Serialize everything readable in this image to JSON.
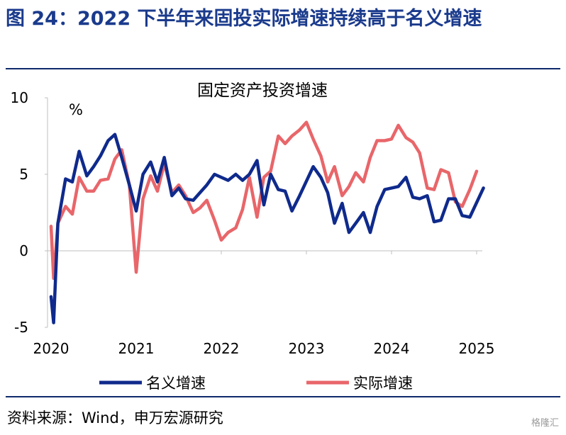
{
  "figure": {
    "title": "图 24：2022 下半年来固投实际增速持续高于名义增速",
    "source": "资料来源：Wind，申万宏源研究",
    "watermark": "格隆汇"
  },
  "chart_data": {
    "type": "line",
    "title": "固定资产投资增速",
    "ylabel": "%",
    "ylim": [
      -5,
      10
    ],
    "yticks": [
      -5,
      0,
      5,
      10
    ],
    "xlim": [
      2020.0,
      2025.15
    ],
    "xticks": [
      2020,
      2021,
      2022,
      2023,
      2024,
      2025
    ],
    "xtick_labels": [
      "2020",
      "2021",
      "2022",
      "2023",
      "2024",
      "2025"
    ],
    "legend_position": "bottom",
    "series": [
      {
        "name": "名义增速",
        "color": "#0f2a8c",
        "points": [
          [
            2020.0,
            -3.0
          ],
          [
            2020.03,
            -4.7
          ],
          [
            2020.08,
            1.8
          ],
          [
            2020.17,
            4.7
          ],
          [
            2020.25,
            4.5
          ],
          [
            2020.33,
            6.5
          ],
          [
            2020.42,
            4.9
          ],
          [
            2020.5,
            5.5
          ],
          [
            2020.58,
            6.2
          ],
          [
            2020.67,
            7.2
          ],
          [
            2020.75,
            7.6
          ],
          [
            2020.83,
            6.1
          ],
          [
            2020.92,
            4.3
          ],
          [
            2021.0,
            2.6
          ],
          [
            2021.08,
            5.0
          ],
          [
            2021.17,
            5.8
          ],
          [
            2021.25,
            4.5
          ],
          [
            2021.33,
            6.1
          ],
          [
            2021.42,
            3.6
          ],
          [
            2021.5,
            4.1
          ],
          [
            2021.58,
            3.4
          ],
          [
            2021.67,
            3.3
          ],
          [
            2021.75,
            3.8
          ],
          [
            2021.83,
            4.3
          ],
          [
            2021.92,
            5.0
          ],
          [
            2022.08,
            4.6
          ],
          [
            2022.17,
            5.0
          ],
          [
            2022.25,
            4.6
          ],
          [
            2022.33,
            5.0
          ],
          [
            2022.42,
            5.9
          ],
          [
            2022.5,
            3.0
          ],
          [
            2022.58,
            5.0
          ],
          [
            2022.67,
            4.0
          ],
          [
            2022.75,
            3.9
          ],
          [
            2022.83,
            2.6
          ],
          [
            2022.92,
            3.6
          ],
          [
            2023.08,
            5.5
          ],
          [
            2023.17,
            4.8
          ],
          [
            2023.25,
            3.8
          ],
          [
            2023.33,
            1.8
          ],
          [
            2023.42,
            3.1
          ],
          [
            2023.5,
            1.2
          ],
          [
            2023.58,
            1.8
          ],
          [
            2023.67,
            2.5
          ],
          [
            2023.75,
            1.2
          ],
          [
            2023.83,
            2.9
          ],
          [
            2023.92,
            4.0
          ],
          [
            2024.0,
            4.1
          ],
          [
            2024.08,
            4.2
          ],
          [
            2024.17,
            4.8
          ],
          [
            2024.25,
            3.5
          ],
          [
            2024.33,
            3.4
          ],
          [
            2024.42,
            3.6
          ],
          [
            2024.5,
            1.9
          ],
          [
            2024.58,
            2.0
          ],
          [
            2024.67,
            3.4
          ],
          [
            2024.75,
            3.4
          ],
          [
            2024.83,
            2.3
          ],
          [
            2024.92,
            2.2
          ],
          [
            2025.08,
            4.1
          ]
        ]
      },
      {
        "name": "实际增速",
        "color": "#e8666a",
        "points": [
          [
            2020.0,
            1.6
          ],
          [
            2020.03,
            -1.8
          ],
          [
            2020.08,
            1.8
          ],
          [
            2020.17,
            2.9
          ],
          [
            2020.25,
            2.4
          ],
          [
            2020.33,
            4.8
          ],
          [
            2020.42,
            3.9
          ],
          [
            2020.5,
            3.9
          ],
          [
            2020.58,
            4.6
          ],
          [
            2020.67,
            4.7
          ],
          [
            2020.75,
            6.0
          ],
          [
            2020.83,
            6.6
          ],
          [
            2020.92,
            4.3
          ],
          [
            2021.0,
            -1.4
          ],
          [
            2021.08,
            3.4
          ],
          [
            2021.17,
            4.9
          ],
          [
            2021.25,
            3.9
          ],
          [
            2021.33,
            5.7
          ],
          [
            2021.42,
            3.8
          ],
          [
            2021.5,
            4.3
          ],
          [
            2021.58,
            3.6
          ],
          [
            2021.67,
            2.5
          ],
          [
            2021.75,
            2.8
          ],
          [
            2021.83,
            3.3
          ],
          [
            2021.92,
            2.0
          ],
          [
            2022.0,
            0.7
          ],
          [
            2022.08,
            1.2
          ],
          [
            2022.17,
            1.5
          ],
          [
            2022.25,
            2.7
          ],
          [
            2022.33,
            4.8
          ],
          [
            2022.42,
            2.2
          ],
          [
            2022.5,
            4.8
          ],
          [
            2022.58,
            5.2
          ],
          [
            2022.67,
            7.5
          ],
          [
            2022.75,
            7.0
          ],
          [
            2022.83,
            7.5
          ],
          [
            2022.92,
            7.9
          ],
          [
            2023.0,
            8.4
          ],
          [
            2023.08,
            7.3
          ],
          [
            2023.17,
            6.2
          ],
          [
            2023.25,
            4.5
          ],
          [
            2023.33,
            5.5
          ],
          [
            2023.42,
            3.6
          ],
          [
            2023.5,
            4.2
          ],
          [
            2023.58,
            5.1
          ],
          [
            2023.67,
            4.5
          ],
          [
            2023.75,
            6.1
          ],
          [
            2023.83,
            7.2
          ],
          [
            2023.92,
            7.2
          ],
          [
            2024.0,
            7.3
          ],
          [
            2024.08,
            8.2
          ],
          [
            2024.17,
            7.4
          ],
          [
            2024.25,
            7.1
          ],
          [
            2024.33,
            6.4
          ],
          [
            2024.42,
            4.1
          ],
          [
            2024.5,
            4.0
          ],
          [
            2024.58,
            5.3
          ],
          [
            2024.67,
            5.1
          ],
          [
            2024.75,
            3.2
          ],
          [
            2024.83,
            2.9
          ],
          [
            2024.92,
            4.0
          ],
          [
            2025.0,
            5.2
          ]
        ]
      }
    ]
  }
}
